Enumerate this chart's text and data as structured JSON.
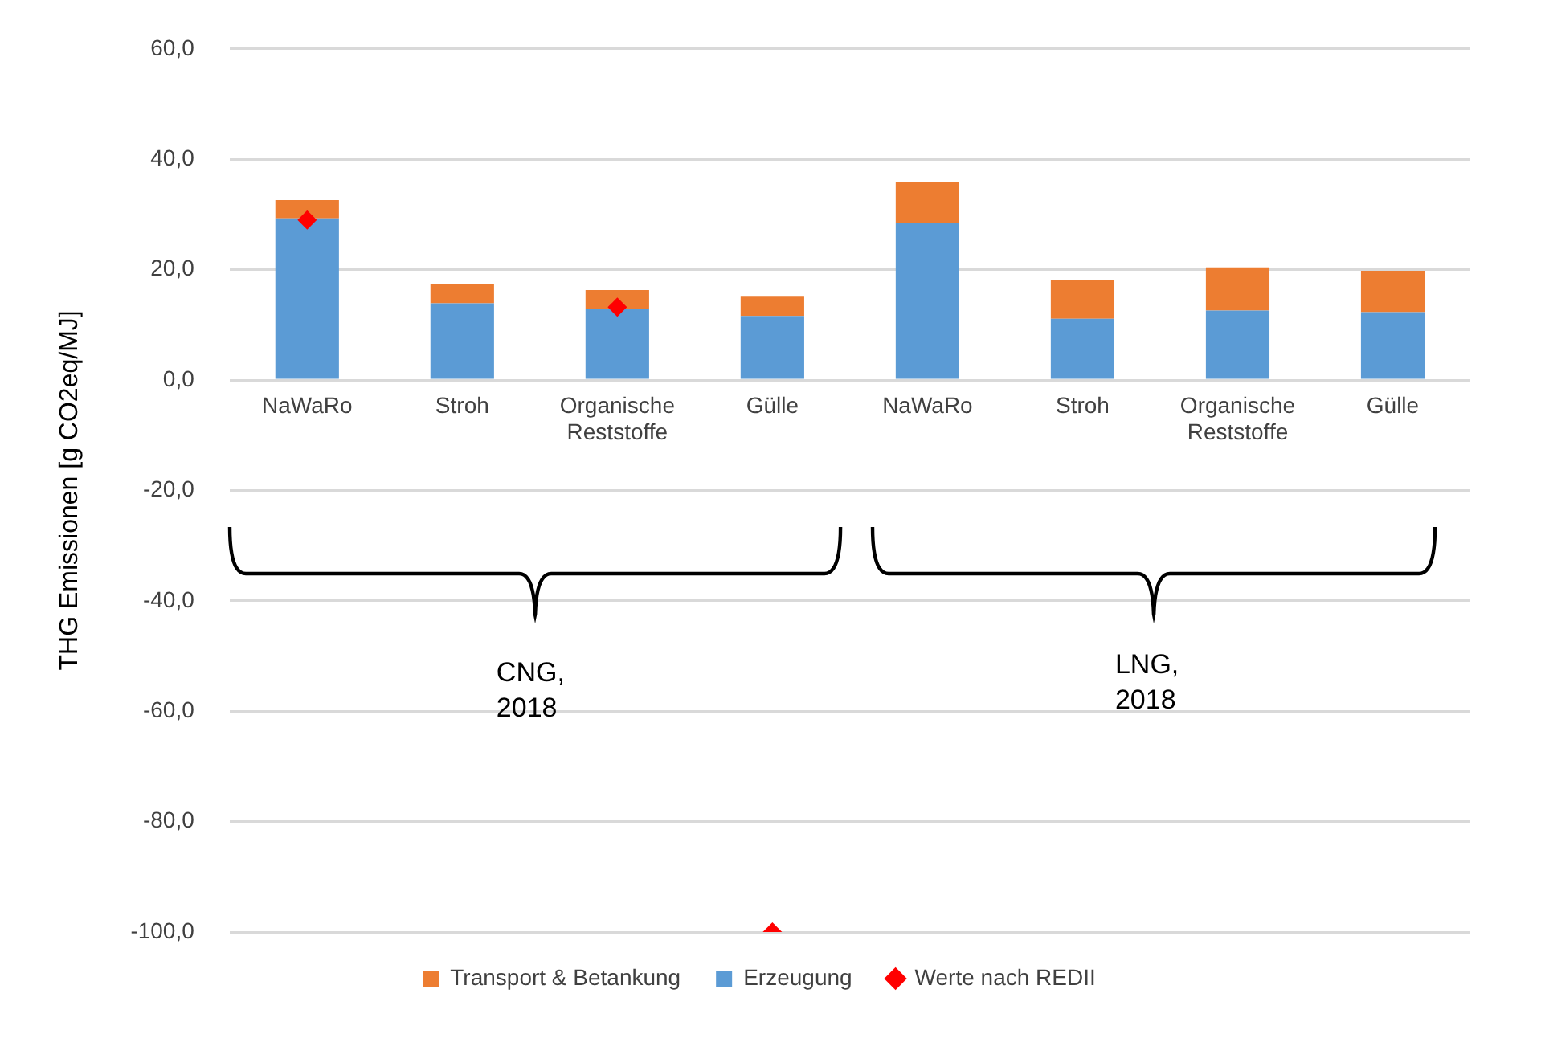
{
  "chart_data": {
    "type": "bar",
    "stacked": true,
    "ylabel": "THG Emissionen [g CO2eq/MJ]",
    "categories": [
      "NaWaRo",
      "Stroh",
      "Organische Reststoffe",
      "Gülle",
      "NaWaRo",
      "Stroh",
      "Organische Reststoffe",
      "Gülle"
    ],
    "series": [
      {
        "name": "Erzeugung",
        "color": "#5b9bd5",
        "values": [
          29.3,
          13.9,
          12.8,
          11.6,
          28.5,
          11.1,
          12.6,
          12.3
        ]
      },
      {
        "name": "Transport & Betankung",
        "color": "#ed7d31",
        "values": [
          3.3,
          3.5,
          3.5,
          3.5,
          7.4,
          7.0,
          7.8,
          7.5
        ]
      },
      {
        "name": "Werte nach REDII",
        "type": "scatter",
        "marker": "diamond",
        "color": "#ff0000",
        "values": [
          29.0,
          null,
          13.2,
          -100,
          null,
          null,
          null,
          null
        ]
      }
    ],
    "ylim": [
      -100,
      60
    ],
    "yticks": [
      {
        "value": -100,
        "label": "-100,0"
      },
      {
        "value": -80,
        "label": "-80,0"
      },
      {
        "value": -60,
        "label": "-60,0"
      },
      {
        "value": -40,
        "label": "-40,0"
      },
      {
        "value": -20,
        "label": "-20,0"
      },
      {
        "value": 0,
        "label": "0,0"
      },
      {
        "value": 20,
        "label": "20,0"
      },
      {
        "value": 40,
        "label": "40,0"
      },
      {
        "value": 60,
        "label": "60,0"
      }
    ],
    "grid": "y",
    "legend": "bottom",
    "annotations": [
      "CNG, 2018",
      "LNG, 2018"
    ]
  }
}
